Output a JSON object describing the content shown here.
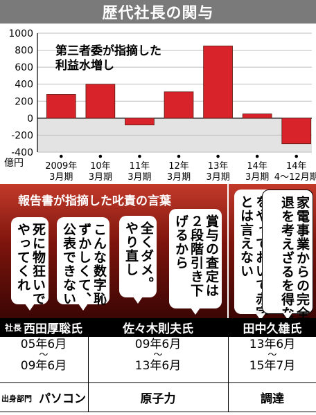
{
  "header": {
    "title": "歴代社長の関与"
  },
  "chart_data": {
    "type": "bar",
    "ylabel": "億円",
    "yticks": [
      1000,
      800,
      600,
      400,
      200,
      0,
      -200,
      -400
    ],
    "ylim": [
      -400,
      1000
    ],
    "categories": [
      [
        "2009年",
        "3月期"
      ],
      [
        "10年",
        "3月期"
      ],
      [
        "11年",
        "3月期"
      ],
      [
        "12年",
        "3月期"
      ],
      [
        "13年",
        "3月期"
      ],
      [
        "14年",
        "3月期"
      ],
      [
        "14年",
        "4〜12月期"
      ]
    ],
    "values": [
      280,
      400,
      -80,
      310,
      850,
      50,
      -300
    ],
    "annotation": "第三者委が指摘した\n利益水増し",
    "bar_color": "#d8232a",
    "negative_band_color": "#e3e3e3"
  },
  "quotes": {
    "header": "報告書が指摘した叱責の言葉",
    "items": [
      {
        "text": "死に物狂いで\nやってくれ"
      },
      {
        "text": "こんな数字恥\nずかしくて、\n公表できない"
      },
      {
        "text": "全くダメ。\nやり直し"
      },
      {
        "text": "賞与の査定は\n２段階引き下\nげるから"
      },
      {
        "text": "あれだけ構造改革\nをやっておいて赤字\nとは言えない"
      },
      {
        "text": "家電事業からの完全撤\n退を考えざるを得ない"
      }
    ]
  },
  "presidents": {
    "role": "社長",
    "items": [
      {
        "name": "西田厚聡氏",
        "term_start": "05年6月",
        "term_end": "09年6月",
        "dept": "パソコン"
      },
      {
        "name": "佐々木則夫氏",
        "term_start": "09年6月",
        "term_end": "13年6月",
        "dept": "原子力"
      },
      {
        "name": "田中久雄氏",
        "term_start": "13年6月",
        "term_end": "15年7月",
        "dept": "調達"
      }
    ],
    "tilde": "〜",
    "dept_label": "出身部門"
  }
}
